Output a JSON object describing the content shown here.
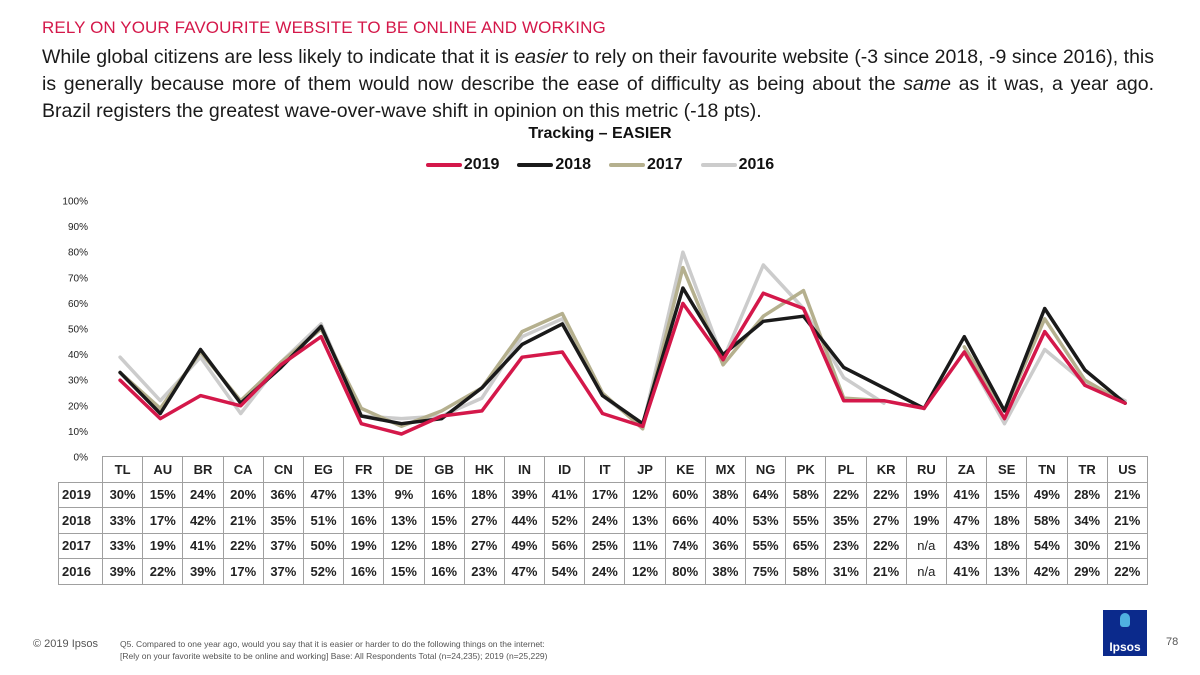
{
  "header": {
    "kicker": "RELY ON YOUR FAVOURITE WEBSITE TO BE ONLINE AND WORKING",
    "subtitle_parts": [
      "While global citizens are less likely to indicate that it is ",
      "easier",
      " to rely on their favourite website (-3 since 2018, -9 since 2016), this is generally because more of them would now describe the ease of difficulty as being about the ",
      "same",
      " as it was, a year ago. Brazil registers the greatest wave-over-wave shift in opinion on this metric (-18 pts)."
    ]
  },
  "chart_data": {
    "type": "line",
    "title": "Tracking – EASIER",
    "ylim": [
      0,
      100
    ],
    "yticks": [
      "0%",
      "10%",
      "20%",
      "30%",
      "40%",
      "50%",
      "60%",
      "70%",
      "80%",
      "90%",
      "100%"
    ],
    "categories": [
      "TL",
      "AU",
      "BR",
      "CA",
      "CN",
      "EG",
      "FR",
      "DE",
      "GB",
      "HK",
      "IN",
      "ID",
      "IT",
      "JP",
      "KE",
      "MX",
      "NG",
      "PK",
      "PL",
      "KR",
      "RU",
      "ZA",
      "SE",
      "TN",
      "TR",
      "US"
    ],
    "series": [
      {
        "name": "2019",
        "color": "#d4184a",
        "values": [
          30,
          15,
          24,
          20,
          36,
          47,
          13,
          9,
          16,
          18,
          39,
          41,
          17,
          12,
          60,
          38,
          64,
          58,
          22,
          22,
          19,
          41,
          15,
          49,
          28,
          21
        ],
        "labels": [
          "30%",
          "15%",
          "24%",
          "20%",
          "36%",
          "47%",
          "13%",
          "9%",
          "16%",
          "18%",
          "39%",
          "41%",
          "17%",
          "12%",
          "60%",
          "38%",
          "64%",
          "58%",
          "22%",
          "22%",
          "19%",
          "41%",
          "15%",
          "49%",
          "28%",
          "21%"
        ]
      },
      {
        "name": "2018",
        "color": "#1a1a1a",
        "values": [
          33,
          17,
          42,
          21,
          35,
          51,
          16,
          13,
          15,
          27,
          44,
          52,
          24,
          13,
          66,
          40,
          53,
          55,
          35,
          27,
          19,
          47,
          18,
          58,
          34,
          21
        ],
        "labels": [
          "33%",
          "17%",
          "42%",
          "21%",
          "35%",
          "51%",
          "16%",
          "13%",
          "15%",
          "27%",
          "44%",
          "52%",
          "24%",
          "13%",
          "66%",
          "40%",
          "53%",
          "55%",
          "35%",
          "27%",
          "19%",
          "47%",
          "18%",
          "58%",
          "34%",
          "21%"
        ]
      },
      {
        "name": "2017",
        "color": "#b5b08e",
        "values": [
          33,
          19,
          41,
          22,
          37,
          50,
          19,
          12,
          18,
          27,
          49,
          56,
          25,
          11,
          74,
          36,
          55,
          65,
          23,
          22,
          null,
          43,
          18,
          54,
          30,
          21
        ],
        "labels": [
          "33%",
          "19%",
          "41%",
          "22%",
          "37%",
          "50%",
          "19%",
          "12%",
          "18%",
          "27%",
          "49%",
          "56%",
          "25%",
          "11%",
          "74%",
          "36%",
          "55%",
          "65%",
          "23%",
          "22%",
          "n/a",
          "43%",
          "18%",
          "54%",
          "30%",
          "21%"
        ]
      },
      {
        "name": "2016",
        "color": "#cccccc",
        "values": [
          39,
          22,
          39,
          17,
          37,
          52,
          16,
          15,
          16,
          23,
          47,
          54,
          24,
          12,
          80,
          38,
          75,
          58,
          31,
          21,
          null,
          41,
          13,
          42,
          29,
          22
        ],
        "labels": [
          "39%",
          "22%",
          "39%",
          "17%",
          "37%",
          "52%",
          "16%",
          "15%",
          "16%",
          "23%",
          "47%",
          "54%",
          "24%",
          "12%",
          "80%",
          "38%",
          "75%",
          "58%",
          "31%",
          "21%",
          "n/a",
          "41%",
          "13%",
          "42%",
          "29%",
          "22%"
        ]
      }
    ],
    "legend_position": "top-center",
    "grid": false
  },
  "footer": {
    "copyright": "© 2019 Ipsos",
    "note_line1": "Q5. Compared to one year ago, would you say that it is easier or harder to do the following things on the internet:",
    "note_line2": "[Rely on your favorite website to be online and working] Base: All Respondents Total (n=24,235); 2019 (n=25,229)",
    "logo_text": "Ipsos",
    "page_number": "78"
  }
}
